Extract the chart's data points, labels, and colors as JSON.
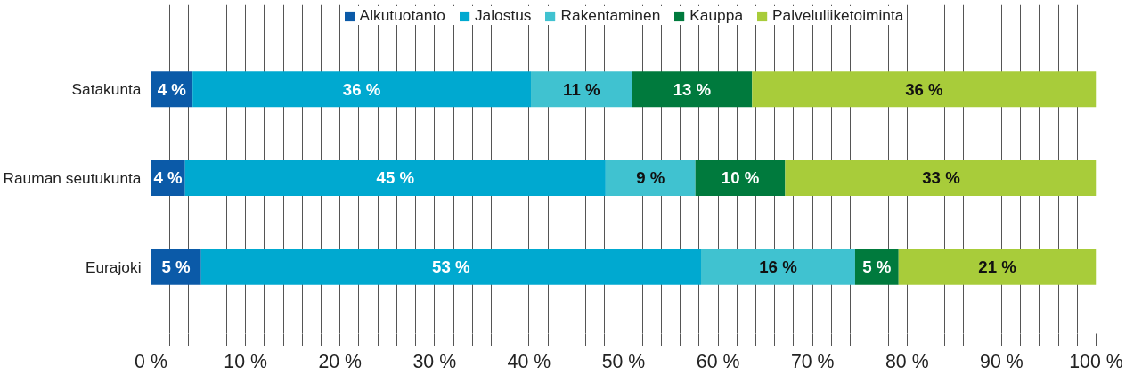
{
  "chart_data": {
    "type": "bar",
    "orientation": "horizontal",
    "stacked": true,
    "categories": [
      "Satakunta",
      "Rauman seutukunta",
      "Eurajoki"
    ],
    "series": [
      {
        "name": "Alkutuotanto",
        "color": "#0b5aa8",
        "values": [
          4.4,
          3.6,
          5.3
        ],
        "value_labels": [
          "4 %",
          "4 %",
          "5 %"
        ]
      },
      {
        "name": "Jalostus",
        "color": "#00a9d0",
        "values": [
          35.8,
          44.5,
          52.9
        ],
        "value_labels": [
          "36 %",
          "45 %",
          "53 %"
        ]
      },
      {
        "name": "Rakentaminen",
        "color": "#40c2d0",
        "values": [
          10.7,
          9.5,
          16.3
        ],
        "value_labels": [
          "11 %",
          "9 %",
          "16 %"
        ]
      },
      {
        "name": "Kauppa",
        "color": "#007a3d",
        "values": [
          12.7,
          9.5,
          4.6
        ],
        "value_labels": [
          "13 %",
          "10 %",
          "5 %"
        ]
      },
      {
        "name": "Palveluliiketoiminta",
        "color": "#a8cc3a",
        "values": [
          36.4,
          33.0,
          20.9
        ],
        "value_labels": [
          "36 %",
          "33 %",
          "21 %"
        ]
      }
    ],
    "xlim": [
      0,
      100
    ],
    "xticks": [
      {
        "value": 0,
        "label": "0 %"
      },
      {
        "value": 2,
        "label": null
      },
      {
        "value": 4,
        "label": null
      },
      {
        "value": 6,
        "label": null
      },
      {
        "value": 8,
        "label": null
      },
      {
        "value": 10,
        "label": "10 %"
      },
      {
        "value": 12,
        "label": null
      },
      {
        "value": 14,
        "label": null
      },
      {
        "value": 16,
        "label": null
      },
      {
        "value": 18,
        "label": null
      },
      {
        "value": 20,
        "label": "20 %"
      },
      {
        "value": 22,
        "label": null
      },
      {
        "value": 24,
        "label": null
      },
      {
        "value": 26,
        "label": null
      },
      {
        "value": 28,
        "label": null
      },
      {
        "value": 30,
        "label": "30 %"
      },
      {
        "value": 32,
        "label": null
      },
      {
        "value": 34,
        "label": null
      },
      {
        "value": 36,
        "label": null
      },
      {
        "value": 38,
        "label": null
      },
      {
        "value": 40,
        "label": "40 %"
      },
      {
        "value": 42,
        "label": null
      },
      {
        "value": 44,
        "label": null
      },
      {
        "value": 46,
        "label": null
      },
      {
        "value": 48,
        "label": null
      },
      {
        "value": 50,
        "label": "50 %"
      },
      {
        "value": 52,
        "label": null
      },
      {
        "value": 54,
        "label": null
      },
      {
        "value": 56,
        "label": null
      },
      {
        "value": 58,
        "label": null
      },
      {
        "value": 60,
        "label": "60 %"
      },
      {
        "value": 62,
        "label": null
      },
      {
        "value": 64,
        "label": null
      },
      {
        "value": 66,
        "label": null
      },
      {
        "value": 68,
        "label": null
      },
      {
        "value": 70,
        "label": "70 %"
      },
      {
        "value": 72,
        "label": null
      },
      {
        "value": 74,
        "label": null
      },
      {
        "value": 76,
        "label": null
      },
      {
        "value": 78,
        "label": null
      },
      {
        "value": 80,
        "label": "80 %"
      },
      {
        "value": 82,
        "label": null
      },
      {
        "value": 84,
        "label": null
      },
      {
        "value": 86,
        "label": null
      },
      {
        "value": 88,
        "label": null
      },
      {
        "value": 90,
        "label": "90 %"
      },
      {
        "value": 92,
        "label": null
      },
      {
        "value": 94,
        "label": null
      },
      {
        "value": 96,
        "label": null
      },
      {
        "value": 98,
        "label": null
      },
      {
        "value": 100,
        "label": "100 %"
      }
    ],
    "grid": "x",
    "legend": "top"
  }
}
